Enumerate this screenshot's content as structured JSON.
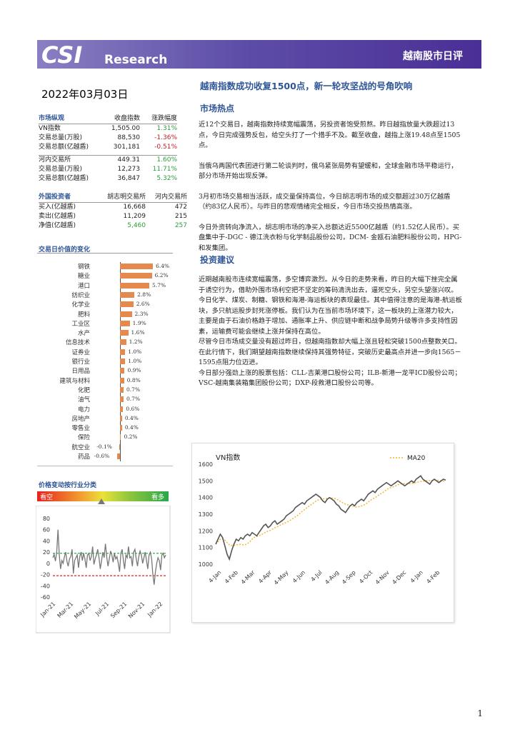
{
  "header": {
    "logo_text": "CSI",
    "brand": "Research",
    "report_name": "越南股市日评"
  },
  "date": "2022年03月03日",
  "headline": "越南指数成功收复1500点，新一轮攻坚战的号角吹响",
  "market": {
    "title": "市场纵观",
    "col_close": "收盘指数",
    "col_change": "涨跌幅度",
    "rows": [
      {
        "label": "VN指数",
        "value": "1,505.00",
        "change": "1.31%",
        "dir": "pos"
      },
      {
        "label": "交易总量(万股)",
        "value": "88,530",
        "change": "-1.36%",
        "dir": "neg"
      },
      {
        "label": "交易总额(亿越盾)",
        "value": "301,181",
        "change": "-0.51%",
        "dir": "neg"
      },
      {
        "label": "河内交易所",
        "value": "449.31",
        "change": "1.60%",
        "dir": "pos"
      },
      {
        "label": "交易总量(万股)",
        "value": "12,273",
        "change": "11.71%",
        "dir": "pos"
      },
      {
        "label": "交易总额(亿越盾)",
        "value": "36,847",
        "change": "5.32%",
        "dir": "pos"
      }
    ]
  },
  "foreign": {
    "title": "外国投资者",
    "col_hcm": "胡志明交易所",
    "col_hn": "河内交易所",
    "rows": [
      {
        "label": "买入(亿越盾)",
        "hcm": "16,668",
        "hn": "472"
      },
      {
        "label": "卖出(亿越盾)",
        "hcm": "11,209",
        "hn": "215"
      },
      {
        "label": "净值(亿越盾)",
        "hcm": "5,460",
        "hn": "257"
      }
    ]
  },
  "sector_title": "交易日价值的变化",
  "sector_chart": {
    "type": "bar",
    "categories": [
      "钢铁",
      "糖业",
      "港口",
      "纺织业",
      "化学业",
      "肥料",
      "工业区",
      "水产",
      "信息技术",
      "证券业",
      "银行业",
      "日用品",
      "建筑与材料",
      "化肥",
      "油气",
      "电力",
      "房地产",
      "零售业",
      "保险",
      "航空业",
      "药品"
    ],
    "values": [
      6.4,
      6.2,
      5.7,
      2.8,
      2.6,
      2.3,
      1.9,
      1.6,
      1.2,
      1.0,
      1.0,
      0.9,
      0.8,
      0.7,
      0.7,
      0.6,
      0.4,
      0.4,
      0.2,
      -0.1,
      -0.6
    ],
    "labels": [
      "6.4%",
      "6.2%",
      "5.7%",
      "2.8%",
      "2.6%",
      "2.3%",
      "1.9%",
      "1.6%",
      "1.2%",
      "1.0%",
      "1.0%",
      "0.9%",
      "0.8%",
      "0.7%",
      "0.7%",
      "0.6%",
      "0.4%",
      "0.4%",
      "0.2%",
      "-0.1%",
      "-0.6%"
    ]
  },
  "ranking": {
    "title": "价格变动按行业分类",
    "bear": "看空",
    "bull": "看多"
  },
  "ranking_chart": {
    "type": "line",
    "yticks": [
      "80",
      "60",
      "40",
      "20",
      "0",
      "-20",
      "-40",
      "-60"
    ],
    "ylim": [
      -60,
      80
    ],
    "xticks": [
      "Jan-21",
      "Mar-21",
      "May-21",
      "Jul-21",
      "Sep-21",
      "Nov-21",
      "Jan-22"
    ],
    "upper_line": 18,
    "lower_line": -22,
    "values": [
      10,
      16,
      4,
      20,
      60,
      15,
      -10,
      5,
      0,
      12,
      20,
      3,
      -5,
      8,
      12,
      25,
      -18,
      5,
      10,
      15,
      -8,
      12,
      20,
      5,
      18,
      8,
      -8,
      15,
      18,
      5,
      12,
      30,
      -2,
      8,
      15,
      25,
      10,
      -10,
      5,
      20,
      10,
      35,
      12,
      -5,
      8,
      22,
      15,
      2,
      18,
      8,
      12,
      0,
      -15,
      18,
      25,
      5,
      -10,
      15,
      10,
      30,
      10,
      12,
      -5,
      20,
      25,
      8,
      -5,
      12,
      22,
      15,
      0,
      10,
      20,
      5,
      -10,
      15,
      20,
      8,
      -20,
      -38,
      -15,
      0,
      10,
      5,
      -12,
      15,
      18,
      10,
      15
    ]
  },
  "hot": {
    "title": "市场热点",
    "paragraphs": [
      "近12个交易日，越南指数持续宽幅震荡，另投资者饱受煎熬。昨日越指放量大跌超过13点，今日完成强势反包，给空头打了一个措手不及。截至收盘，越指上涨19.48点至1505点。",
      "当俄乌两国代表团进行第二轮谈判时，俄乌紧张局势有望缓和，全球金融市场平稳运行，部分市场开始出现反弹。",
      "3月初市场交易相当活跃，成交量保持高位，今日胡志明市场的成交额超过30万亿越盾（约83亿人民币）。与昨日的悲观情绪完全相反，今日市场交投热情高涨。",
      "今日外资转向净流入，胡志明市场的净买入总额达近5500亿越盾（约1.52亿人民币）。买盘集中于-DGC - 德江洗衣粉与化学制品股份公司，DCM- 金瓯石油肥料股份公司，HPG-和发集团。"
    ]
  },
  "advice": {
    "title": "投资建议",
    "paragraphs": [
      "近期越南股市连续宽幅震荡，多空博弈激烈。从今日的走势来看，昨日的大幅下挫完全属于诱空行为，借助外围市场利空把不坚定的筹码清洗出去，逼死空头，另空头望涨兴叹。",
      "今日化学、煤炭、制糖、钢铁和海港-海运板块的表现最佳。其中值得注意的是海港-航运板块，多只航运股步封死涨停板。我们认为在当前市场环境下，这一板块的上涨潜力较大，主要是由于石油价格趋于增加、通胀率上升、供应链中断和战争局势升级等许多支持性因素，运输费可能会继续上涨并保持在高位。",
      "尽管今日市场成交量没有超过昨日，但越南指数却大幅上涨且轻松突破1500点整数关口。在此行情下，我们期望越南指数继续保持其强势特征，突破历史最高点并进一步向1565－1595点阻力位迈进。",
      "今日部分强劲上涨的股票包括：CLL-吉莱港口股份公司；ILB-新港一龙平ICD股份公司；VSC-越南集装箱集团股份公司；DXP-段救港口股份公司等。"
    ]
  },
  "vn_chart": {
    "type": "line",
    "title": "VN指数",
    "legend": "MA20",
    "ylim": [
      1000,
      1600
    ],
    "yticks": [
      "1600",
      "1500",
      "1400",
      "1300",
      "1200",
      "1100",
      "1000"
    ],
    "xticks": [
      "4-Jan",
      "4-Feb",
      "4-Mar",
      "4-Apr",
      "4-May",
      "4-Jun",
      "4-Jul",
      "4-Aug",
      "4-Sep",
      "4-Oct",
      "4-Nov",
      "4-Dec",
      "4-Jan",
      "4-Feb"
    ],
    "colors": {
      "price": "#555555",
      "ma": "#f0b429"
    },
    "values": [
      1120,
      1150,
      1180,
      1160,
      1110,
      1060,
      1030,
      1080,
      1120,
      1150,
      1140,
      1160,
      1150,
      1170,
      1180,
      1170,
      1190,
      1180,
      1170,
      1190,
      1210,
      1230,
      1240,
      1220,
      1230,
      1250,
      1260,
      1240,
      1250,
      1260,
      1270,
      1290,
      1300,
      1310,
      1320,
      1340,
      1350,
      1360,
      1370,
      1360,
      1380,
      1390,
      1400,
      1410,
      1420,
      1410,
      1400,
      1380,
      1370,
      1390,
      1400,
      1390,
      1380,
      1360,
      1350,
      1330,
      1320,
      1310,
      1330,
      1350,
      1360,
      1350,
      1370,
      1380,
      1390,
      1380,
      1400,
      1420,
      1430,
      1440,
      1430,
      1450,
      1460,
      1470,
      1480,
      1490,
      1480,
      1470,
      1480,
      1490,
      1500,
      1490,
      1480,
      1470,
      1480,
      1490,
      1500,
      1490,
      1510,
      1520,
      1530,
      1510,
      1500,
      1490,
      1480,
      1500,
      1510,
      1500,
      1490,
      1500,
      1510,
      1505
    ]
  },
  "page_number": "1"
}
